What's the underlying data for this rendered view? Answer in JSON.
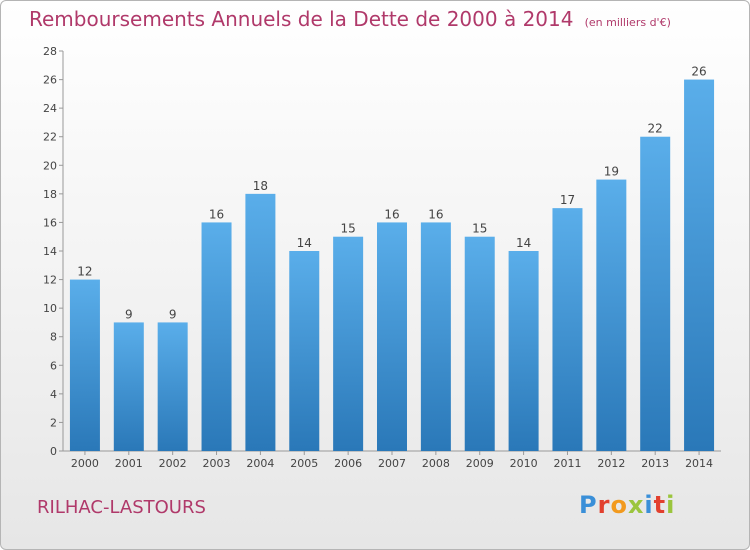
{
  "header": {
    "title": "Remboursements Annuels de la Dette de 2000 à 2014",
    "subtitle": "(en milliers d'€)"
  },
  "footer": {
    "commune": "RILHAC-LASTOURS",
    "logo": "Proxiti"
  },
  "colors": {
    "bar_top": "#5aaeea",
    "bar_bottom": "#2a78b8",
    "title": "#b0396a"
  },
  "chart_data": {
    "type": "bar",
    "categories": [
      "2000",
      "2001",
      "2002",
      "2003",
      "2004",
      "2005",
      "2006",
      "2007",
      "2008",
      "2009",
      "2010",
      "2011",
      "2012",
      "2013",
      "2014"
    ],
    "values": [
      12,
      9,
      9,
      16,
      18,
      14,
      15,
      16,
      16,
      15,
      14,
      17,
      19,
      22,
      26
    ],
    "ylim": [
      0,
      28
    ],
    "yticks": [
      0,
      2,
      4,
      6,
      8,
      10,
      12,
      14,
      16,
      18,
      20,
      22,
      24,
      26,
      28
    ],
    "grid": false
  }
}
